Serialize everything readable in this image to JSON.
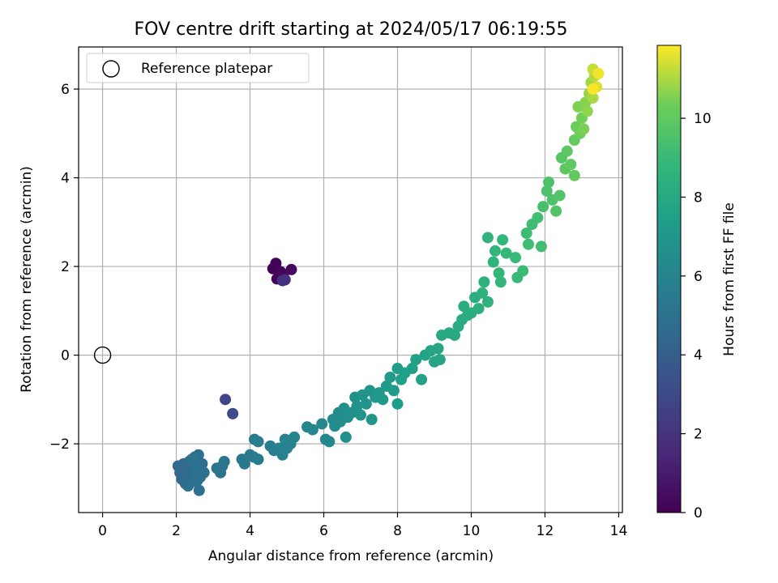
{
  "chart_data": {
    "type": "scatter",
    "title": "FOV centre drift starting at 2024/05/17 06:19:55",
    "xlabel": "Angular distance from reference (arcmin)",
    "ylabel": "Rotation from reference (arcmin)",
    "xlim": [
      -0.65,
      14.1
    ],
    "ylim": [
      -3.55,
      6.95
    ],
    "x_ticks": [
      0,
      2,
      4,
      6,
      8,
      10,
      12,
      14
    ],
    "y_ticks": [
      -2,
      0,
      2,
      4,
      6
    ],
    "x_tick_labels": [
      "0",
      "2",
      "4",
      "6",
      "8",
      "10",
      "12",
      "14"
    ],
    "y_tick_labels": [
      "−2",
      "0",
      "2",
      "4",
      "6"
    ],
    "grid": true,
    "legend": {
      "position": "top-left",
      "entries": [
        {
          "label": "Reference platepar",
          "marker": "open-circle"
        }
      ]
    },
    "reference": {
      "x": 0,
      "y": 0,
      "label": "Reference platepar"
    },
    "colorbar": {
      "label": "Hours from first FF file",
      "colormap": "viridis",
      "range": [
        0,
        11.85
      ],
      "ticks": [
        0,
        2,
        4,
        6,
        8,
        10
      ],
      "tick_labels": [
        "0",
        "2",
        "4",
        "6",
        "8",
        "10"
      ]
    },
    "points": [
      {
        "x": 4.62,
        "y": 1.95,
        "c": 0.05
      },
      {
        "x": 4.7,
        "y": 2.07,
        "c": 0.1
      },
      {
        "x": 4.83,
        "y": 1.88,
        "c": 0.15
      },
      {
        "x": 4.73,
        "y": 1.72,
        "c": 0.2
      },
      {
        "x": 4.9,
        "y": 1.78,
        "c": 0.25
      },
      {
        "x": 5.12,
        "y": 1.93,
        "c": 0.3
      },
      {
        "x": 4.95,
        "y": 1.7,
        "c": 1.8
      },
      {
        "x": 4.88,
        "y": 1.68,
        "c": 1.9
      },
      {
        "x": 3.33,
        "y": -1.0,
        "c": 2.8
      },
      {
        "x": 3.53,
        "y": -1.32,
        "c": 3.0
      },
      {
        "x": 2.05,
        "y": -2.5,
        "c": 4.5
      },
      {
        "x": 2.1,
        "y": -2.65,
        "c": 4.55
      },
      {
        "x": 2.15,
        "y": -2.8,
        "c": 4.6
      },
      {
        "x": 2.2,
        "y": -2.45,
        "c": 4.6
      },
      {
        "x": 2.25,
        "y": -2.9,
        "c": 4.65
      },
      {
        "x": 2.3,
        "y": -2.55,
        "c": 4.65
      },
      {
        "x": 2.35,
        "y": -2.4,
        "c": 4.7
      },
      {
        "x": 2.4,
        "y": -2.7,
        "c": 4.7
      },
      {
        "x": 2.45,
        "y": -2.85,
        "c": 4.75
      },
      {
        "x": 2.5,
        "y": -2.3,
        "c": 4.75
      },
      {
        "x": 2.55,
        "y": -2.6,
        "c": 4.8
      },
      {
        "x": 2.6,
        "y": -2.25,
        "c": 4.8
      },
      {
        "x": 2.65,
        "y": -2.75,
        "c": 4.85
      },
      {
        "x": 2.7,
        "y": -2.45,
        "c": 4.85
      },
      {
        "x": 2.75,
        "y": -2.65,
        "c": 4.9
      },
      {
        "x": 2.62,
        "y": -3.05,
        "c": 4.9
      },
      {
        "x": 2.32,
        "y": -2.95,
        "c": 4.95
      },
      {
        "x": 2.52,
        "y": -2.5,
        "c": 4.95
      },
      {
        "x": 2.42,
        "y": -2.35,
        "c": 5.0
      },
      {
        "x": 2.58,
        "y": -2.82,
        "c": 5.0
      },
      {
        "x": 3.1,
        "y": -2.55,
        "c": 5.1
      },
      {
        "x": 3.2,
        "y": -2.65,
        "c": 5.15
      },
      {
        "x": 3.3,
        "y": -2.4,
        "c": 5.2
      },
      {
        "x": 3.25,
        "y": -2.5,
        "c": 5.25
      },
      {
        "x": 3.78,
        "y": -2.35,
        "c": 5.3
      },
      {
        "x": 3.85,
        "y": -2.45,
        "c": 5.35
      },
      {
        "x": 4.0,
        "y": -2.25,
        "c": 5.4
      },
      {
        "x": 4.1,
        "y": -2.3,
        "c": 5.45
      },
      {
        "x": 4.22,
        "y": -2.35,
        "c": 5.5
      },
      {
        "x": 4.12,
        "y": -1.9,
        "c": 5.6
      },
      {
        "x": 4.22,
        "y": -1.95,
        "c": 5.65
      },
      {
        "x": 4.55,
        "y": -2.05,
        "c": 5.7
      },
      {
        "x": 4.65,
        "y": -2.15,
        "c": 5.75
      },
      {
        "x": 4.78,
        "y": -2.1,
        "c": 5.8
      },
      {
        "x": 4.88,
        "y": -2.25,
        "c": 5.85
      },
      {
        "x": 5.0,
        "y": -2.1,
        "c": 5.9
      },
      {
        "x": 4.95,
        "y": -1.9,
        "c": 5.95
      },
      {
        "x": 5.1,
        "y": -2.0,
        "c": 6.0
      },
      {
        "x": 5.2,
        "y": -1.85,
        "c": 6.05
      },
      {
        "x": 5.55,
        "y": -1.62,
        "c": 6.1
      },
      {
        "x": 5.7,
        "y": -1.68,
        "c": 6.15
      },
      {
        "x": 5.95,
        "y": -1.55,
        "c": 6.2
      },
      {
        "x": 6.05,
        "y": -1.9,
        "c": 6.25
      },
      {
        "x": 6.15,
        "y": -1.95,
        "c": 6.3
      },
      {
        "x": 6.25,
        "y": -1.45,
        "c": 6.35
      },
      {
        "x": 6.3,
        "y": -1.6,
        "c": 6.4
      },
      {
        "x": 6.4,
        "y": -1.3,
        "c": 6.45
      },
      {
        "x": 6.45,
        "y": -1.5,
        "c": 6.5
      },
      {
        "x": 6.55,
        "y": -1.2,
        "c": 6.55
      },
      {
        "x": 6.6,
        "y": -1.85,
        "c": 6.6
      },
      {
        "x": 6.65,
        "y": -1.4,
        "c": 6.6
      },
      {
        "x": 6.75,
        "y": -1.3,
        "c": 6.65
      },
      {
        "x": 6.85,
        "y": -0.95,
        "c": 6.7
      },
      {
        "x": 6.9,
        "y": -1.15,
        "c": 6.75
      },
      {
        "x": 7.0,
        "y": -1.35,
        "c": 6.8
      },
      {
        "x": 7.05,
        "y": -0.9,
        "c": 6.85
      },
      {
        "x": 7.15,
        "y": -1.1,
        "c": 6.9
      },
      {
        "x": 7.25,
        "y": -0.8,
        "c": 6.95
      },
      {
        "x": 7.3,
        "y": -1.45,
        "c": 7.0
      },
      {
        "x": 7.4,
        "y": -0.95,
        "c": 7.05
      },
      {
        "x": 7.5,
        "y": -0.85,
        "c": 7.1
      },
      {
        "x": 7.6,
        "y": -1.0,
        "c": 7.15
      },
      {
        "x": 7.7,
        "y": -0.7,
        "c": 7.2
      },
      {
        "x": 7.8,
        "y": -0.5,
        "c": 7.25
      },
      {
        "x": 7.9,
        "y": -0.8,
        "c": 7.3
      },
      {
        "x": 8.0,
        "y": -1.1,
        "c": 7.35
      },
      {
        "x": 8.0,
        "y": -0.3,
        "c": 7.4
      },
      {
        "x": 8.1,
        "y": -0.55,
        "c": 7.45
      },
      {
        "x": 8.2,
        "y": -0.4,
        "c": 7.5
      },
      {
        "x": 8.4,
        "y": -0.3,
        "c": 7.55
      },
      {
        "x": 8.5,
        "y": -0.1,
        "c": 7.6
      },
      {
        "x": 8.65,
        "y": -0.55,
        "c": 7.65
      },
      {
        "x": 8.75,
        "y": 0.0,
        "c": 7.7
      },
      {
        "x": 8.9,
        "y": 0.1,
        "c": 7.75
      },
      {
        "x": 9.0,
        "y": -0.15,
        "c": 7.8
      },
      {
        "x": 9.1,
        "y": 0.15,
        "c": 7.85
      },
      {
        "x": 9.15,
        "y": -0.1,
        "c": 7.9
      },
      {
        "x": 9.2,
        "y": 0.45,
        "c": 7.95
      },
      {
        "x": 9.4,
        "y": 0.5,
        "c": 8.0
      },
      {
        "x": 9.55,
        "y": 0.45,
        "c": 8.05
      },
      {
        "x": 9.65,
        "y": 0.65,
        "c": 8.1
      },
      {
        "x": 9.75,
        "y": 0.8,
        "c": 8.15
      },
      {
        "x": 9.8,
        "y": 1.1,
        "c": 8.2
      },
      {
        "x": 9.9,
        "y": 0.9,
        "c": 8.25
      },
      {
        "x": 10.0,
        "y": 0.95,
        "c": 8.3
      },
      {
        "x": 10.1,
        "y": 1.3,
        "c": 8.35
      },
      {
        "x": 10.2,
        "y": 1.05,
        "c": 8.4
      },
      {
        "x": 10.3,
        "y": 1.4,
        "c": 8.45
      },
      {
        "x": 10.35,
        "y": 1.65,
        "c": 8.5
      },
      {
        "x": 10.45,
        "y": 1.2,
        "c": 8.55
      },
      {
        "x": 10.45,
        "y": 2.65,
        "c": 8.6
      },
      {
        "x": 10.6,
        "y": 2.1,
        "c": 8.65
      },
      {
        "x": 10.65,
        "y": 2.35,
        "c": 8.7
      },
      {
        "x": 10.75,
        "y": 1.85,
        "c": 8.75
      },
      {
        "x": 10.8,
        "y": 1.65,
        "c": 8.8
      },
      {
        "x": 10.85,
        "y": 2.6,
        "c": 8.85
      },
      {
        "x": 10.95,
        "y": 2.3,
        "c": 8.9
      },
      {
        "x": 11.25,
        "y": 1.75,
        "c": 8.95
      },
      {
        "x": 11.2,
        "y": 2.2,
        "c": 9.0
      },
      {
        "x": 11.4,
        "y": 1.9,
        "c": 9.05
      },
      {
        "x": 11.5,
        "y": 2.75,
        "c": 9.1
      },
      {
        "x": 11.55,
        "y": 2.5,
        "c": 9.15
      },
      {
        "x": 11.65,
        "y": 2.95,
        "c": 9.2
      },
      {
        "x": 11.8,
        "y": 3.1,
        "c": 9.25
      },
      {
        "x": 11.9,
        "y": 2.45,
        "c": 9.3
      },
      {
        "x": 11.95,
        "y": 3.35,
        "c": 9.4
      },
      {
        "x": 12.05,
        "y": 3.7,
        "c": 9.5
      },
      {
        "x": 12.1,
        "y": 3.9,
        "c": 9.55
      },
      {
        "x": 12.2,
        "y": 3.5,
        "c": 9.6
      },
      {
        "x": 12.3,
        "y": 3.25,
        "c": 9.65
      },
      {
        "x": 12.4,
        "y": 3.6,
        "c": 9.7
      },
      {
        "x": 12.45,
        "y": 4.45,
        "c": 9.8
      },
      {
        "x": 12.55,
        "y": 4.2,
        "c": 9.9
      },
      {
        "x": 12.6,
        "y": 4.6,
        "c": 9.95
      },
      {
        "x": 12.7,
        "y": 4.3,
        "c": 10.0
      },
      {
        "x": 12.8,
        "y": 4.05,
        "c": 10.05
      },
      {
        "x": 12.8,
        "y": 4.85,
        "c": 10.1
      },
      {
        "x": 12.85,
        "y": 5.15,
        "c": 10.2
      },
      {
        "x": 12.95,
        "y": 5.0,
        "c": 10.3
      },
      {
        "x": 13.0,
        "y": 5.35,
        "c": 10.4
      },
      {
        "x": 13.05,
        "y": 5.1,
        "c": 10.5
      },
      {
        "x": 12.9,
        "y": 5.6,
        "c": 10.55
      },
      {
        "x": 13.1,
        "y": 5.7,
        "c": 10.6
      },
      {
        "x": 13.15,
        "y": 5.5,
        "c": 10.7
      },
      {
        "x": 13.2,
        "y": 5.9,
        "c": 10.8
      },
      {
        "x": 13.25,
        "y": 6.15,
        "c": 10.9
      },
      {
        "x": 13.3,
        "y": 5.8,
        "c": 11.0
      },
      {
        "x": 13.35,
        "y": 6.3,
        "c": 11.1
      },
      {
        "x": 13.3,
        "y": 6.45,
        "c": 11.3
      },
      {
        "x": 13.4,
        "y": 6.05,
        "c": 11.5
      },
      {
        "x": 13.45,
        "y": 6.35,
        "c": 11.7
      },
      {
        "x": 13.3,
        "y": 6.0,
        "c": 11.8
      }
    ]
  }
}
